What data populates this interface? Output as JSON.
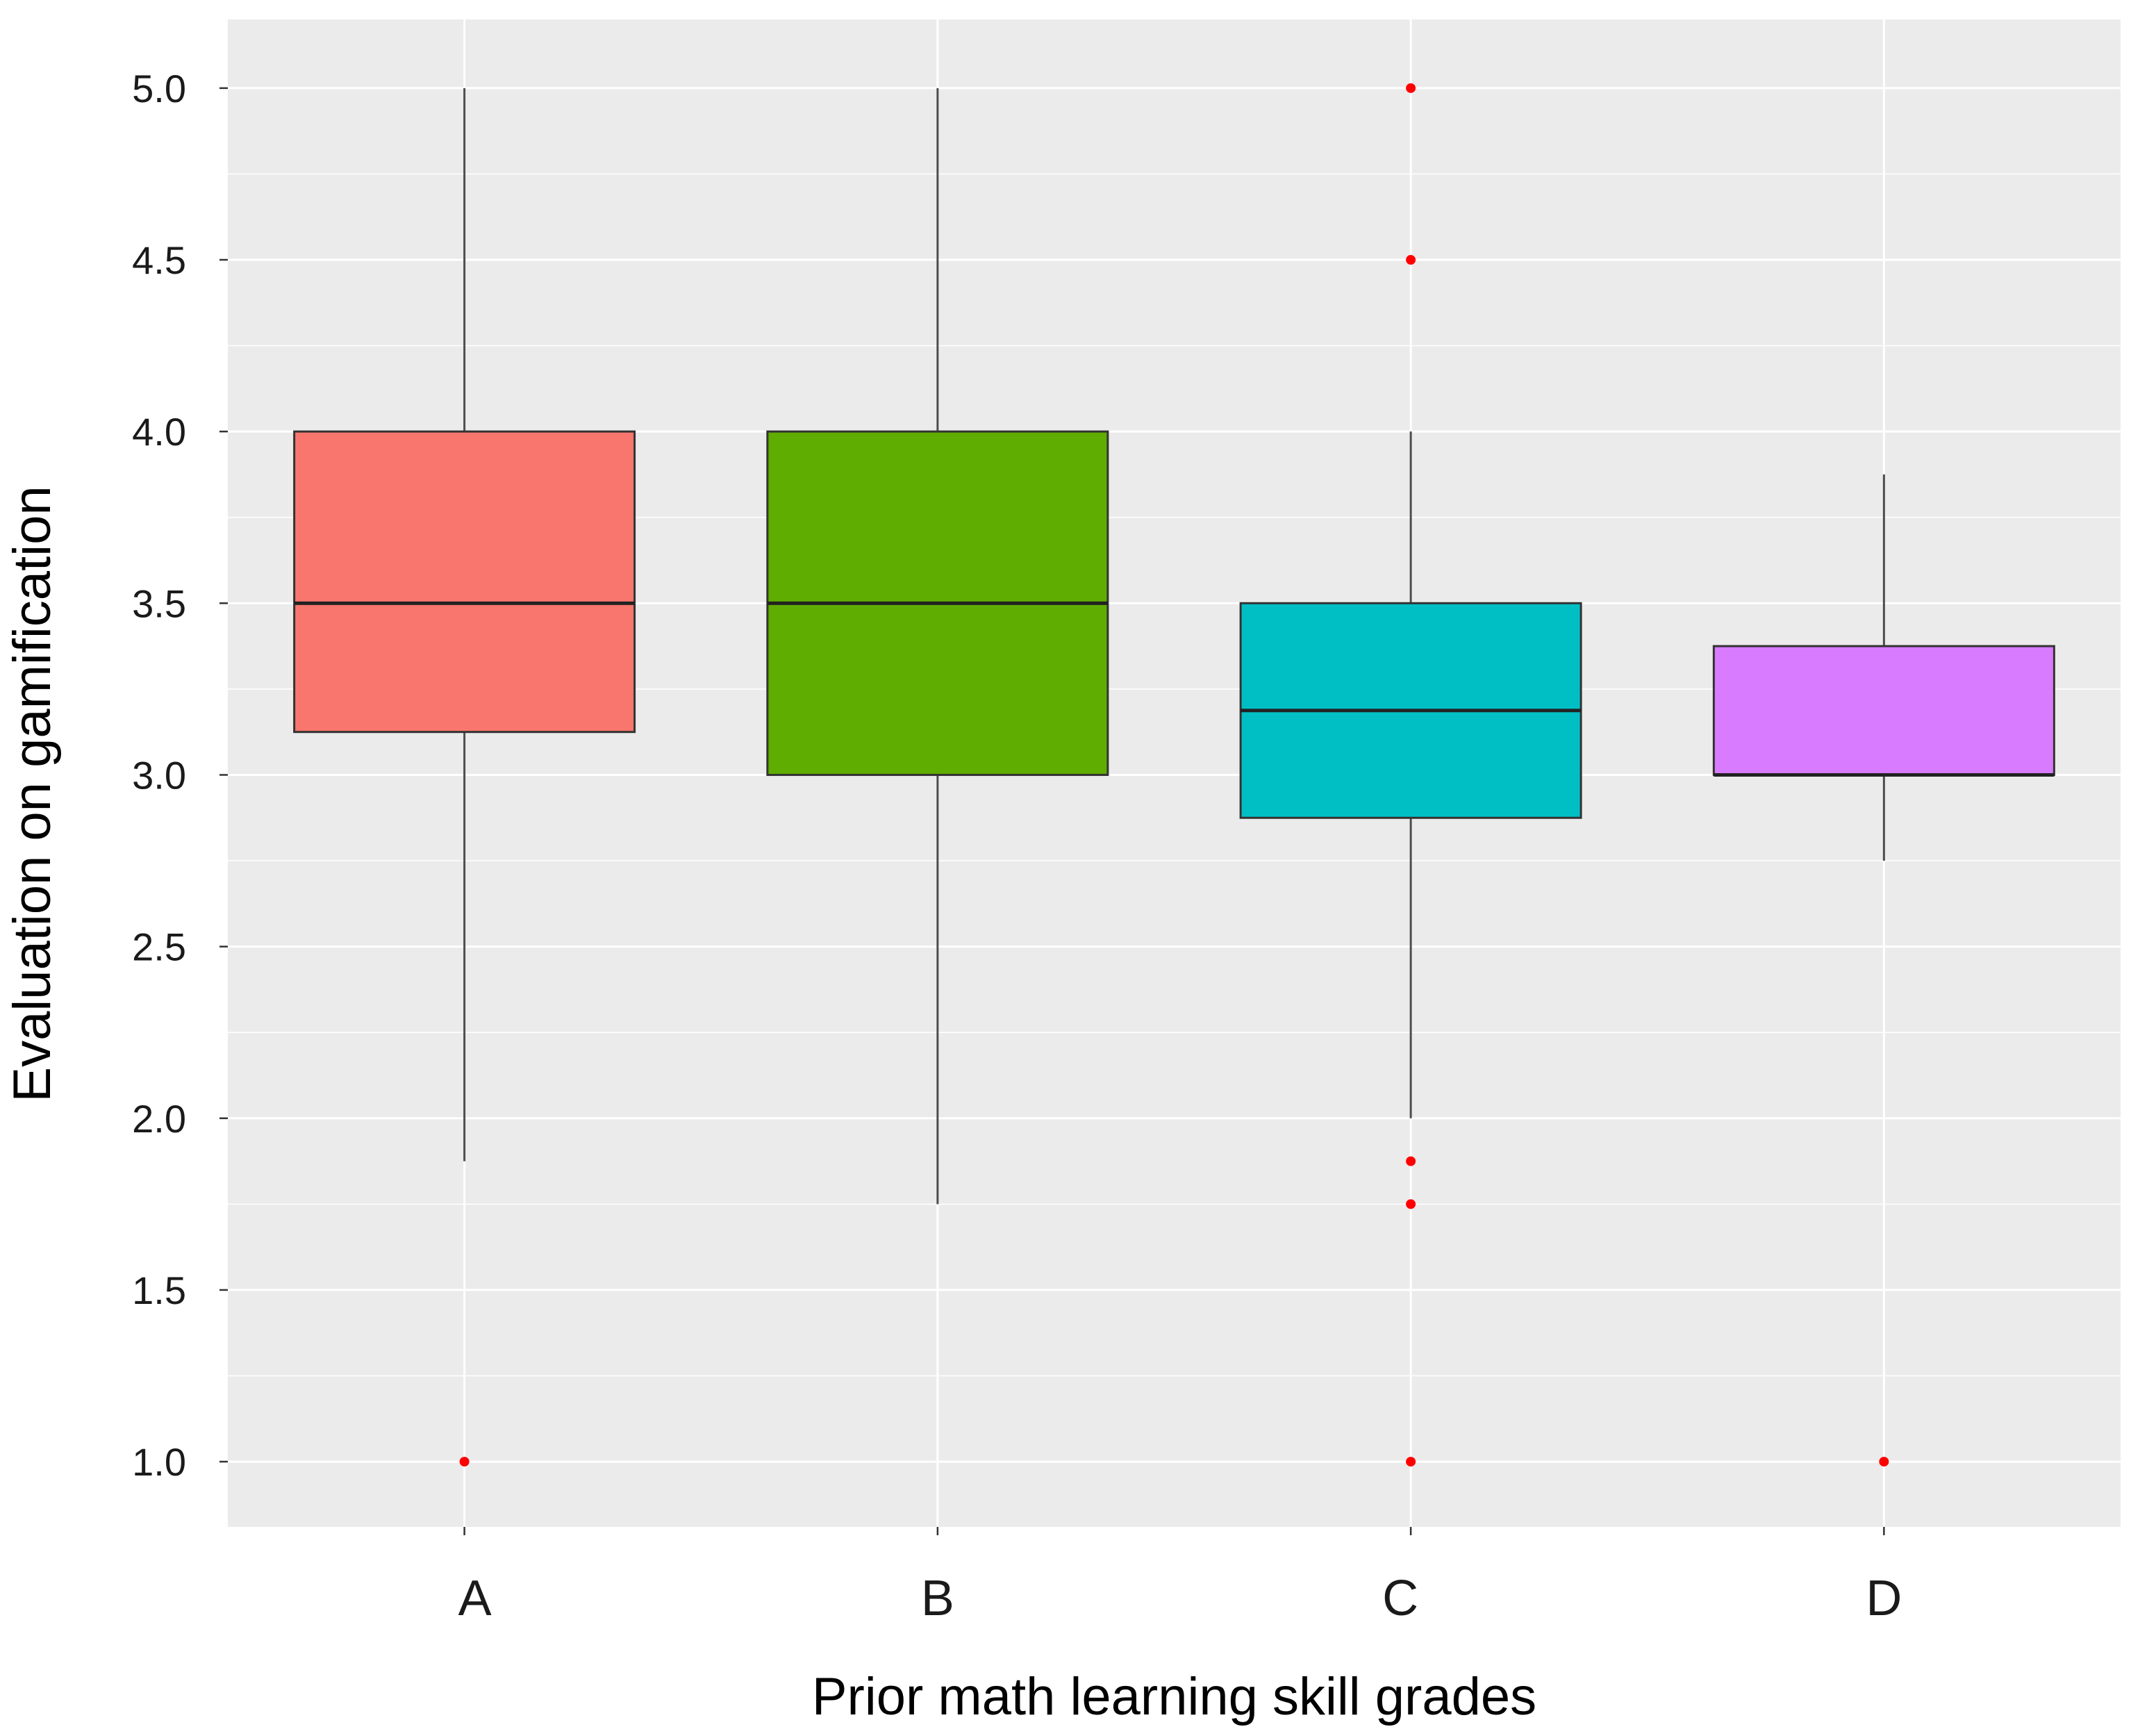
{
  "chart_data": {
    "type": "boxplot",
    "xlabel": "Prior math learning skill grades",
    "ylabel": "Evaluation on gamification",
    "ylim": [
      0.81,
      5.2
    ],
    "yticks": [
      1.0,
      1.5,
      2.0,
      2.5,
      3.0,
      3.5,
      4.0,
      4.5,
      5.0
    ],
    "ytick_labels": [
      "1.0",
      "1.5",
      "2.0",
      "2.5",
      "3.0",
      "3.5",
      "4.0",
      "4.5",
      "5.0"
    ],
    "categories": [
      "A",
      "B",
      "C",
      "D"
    ],
    "boxes": [
      {
        "category": "A",
        "whisker_low": 1.875,
        "q1": 3.125,
        "median": 3.5,
        "q3": 4.0,
        "whisker_high": 5.0,
        "outliers": [
          1.0
        ],
        "color": "#F8766D"
      },
      {
        "category": "B",
        "whisker_low": 1.75,
        "q1": 3.0,
        "median": 3.5,
        "q3": 4.0,
        "whisker_high": 5.0,
        "outliers": [],
        "color": "#5FAD00"
      },
      {
        "category": "C",
        "whisker_low": 2.0,
        "q1": 2.875,
        "median": 3.1875,
        "q3": 3.5,
        "whisker_high": 4.0,
        "outliers": [
          5.0,
          4.5,
          1.875,
          1.75,
          1.0
        ],
        "color": "#00BFC4"
      },
      {
        "category": "D",
        "whisker_low": 2.75,
        "q1": 3.0,
        "median": 3.0,
        "q3": 3.375,
        "whisker_high": 3.875,
        "outliers": [
          1.0
        ],
        "color": "#D97BFF"
      }
    ],
    "colors": {
      "panel_background": "#EBEBEB",
      "gridline": "#FFFFFF",
      "outlier": "#FF0000",
      "box_outline": "#333333",
      "whisker": "#4D4D4D"
    },
    "grid": true,
    "legend": "none"
  }
}
